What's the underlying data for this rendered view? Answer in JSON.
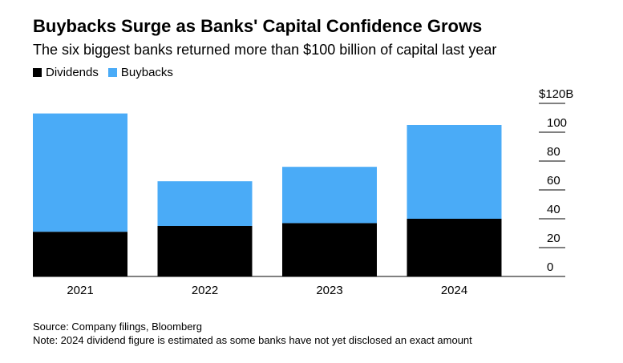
{
  "title": "Buybacks Surge as Banks' Capital Confidence Grows",
  "subtitle": "The six biggest banks returned more than $100 billion of capital last year",
  "legend": [
    {
      "label": "Dividends",
      "color": "#000000"
    },
    {
      "label": "Buybacks",
      "color": "#4aabf7"
    }
  ],
  "chart_data": {
    "type": "bar",
    "stacked": true,
    "categories": [
      "2021",
      "2022",
      "2023",
      "2024"
    ],
    "series": [
      {
        "name": "Dividends",
        "color": "#000000",
        "values": [
          31,
          35,
          37,
          40
        ]
      },
      {
        "name": "Buybacks",
        "color": "#4aabf7",
        "values": [
          82,
          31,
          39,
          65
        ]
      }
    ],
    "ylim": [
      0,
      120
    ],
    "yticks": [
      0,
      20,
      40,
      60,
      80,
      100,
      120
    ],
    "ytick_labels": [
      "0",
      "20",
      "40",
      "60",
      "80",
      "100",
      "$120B"
    ],
    "yaxis_side": "right",
    "legend_position": "top-left",
    "grid": false
  },
  "footer": {
    "source": "Source: Company filings, Bloomberg",
    "note": "Note: 2024 dividend figure is estimated as some banks have not yet disclosed an exact amount"
  }
}
